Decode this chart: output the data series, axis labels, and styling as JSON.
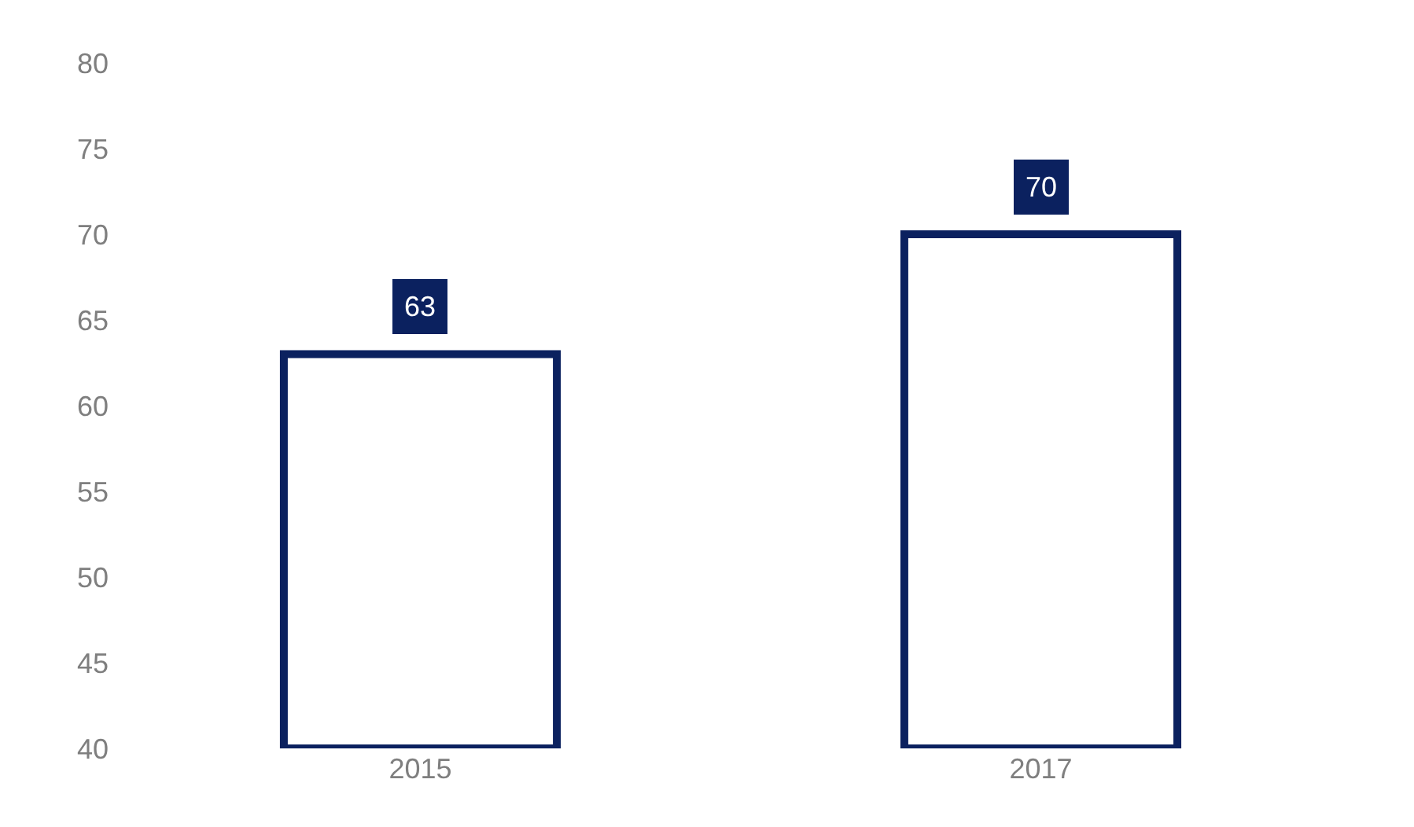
{
  "chart_data": {
    "type": "bar",
    "categories": [
      "2015",
      "2017"
    ],
    "values": [
      63,
      70
    ],
    "color": "#0b215f",
    "ylim": [
      40,
      80
    ],
    "yticks": [
      40,
      45,
      50,
      55,
      60,
      65,
      70,
      75,
      80
    ],
    "grid": false,
    "data_labels": true
  }
}
